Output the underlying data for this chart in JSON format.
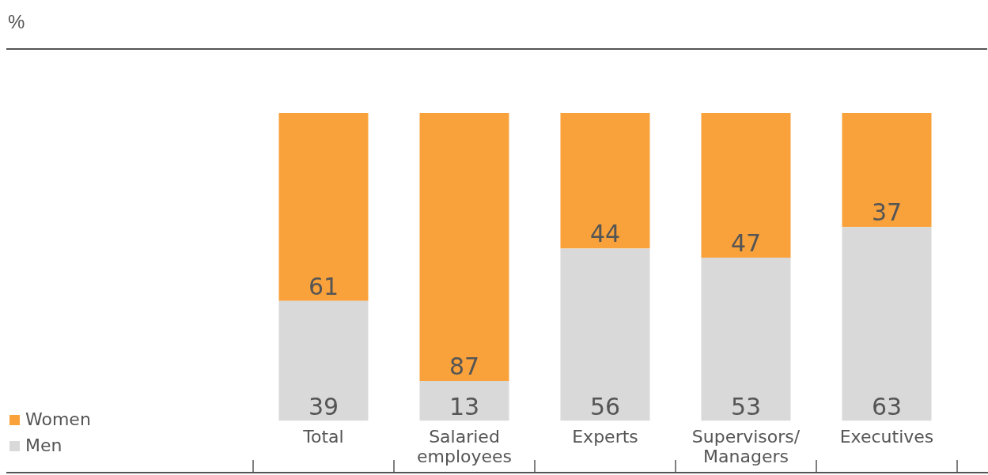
{
  "chart_data": {
    "type": "bar",
    "annotations": [
      "%"
    ],
    "stacked": true,
    "data_labels": true,
    "legend": "bottom left",
    "grid": false,
    "tick_labels": "x",
    "categories": [
      "Total",
      "Salaried employees",
      "Experts",
      "Supervisors/Managers",
      "Executives"
    ],
    "series": [
      {
        "name": "Men",
        "color": "#d9d9d9",
        "values": [
          39,
          13,
          56,
          53,
          63
        ]
      },
      {
        "name": "Women",
        "color": "#f9a23b",
        "values": [
          61,
          87,
          44,
          47,
          37
        ]
      }
    ]
  }
}
